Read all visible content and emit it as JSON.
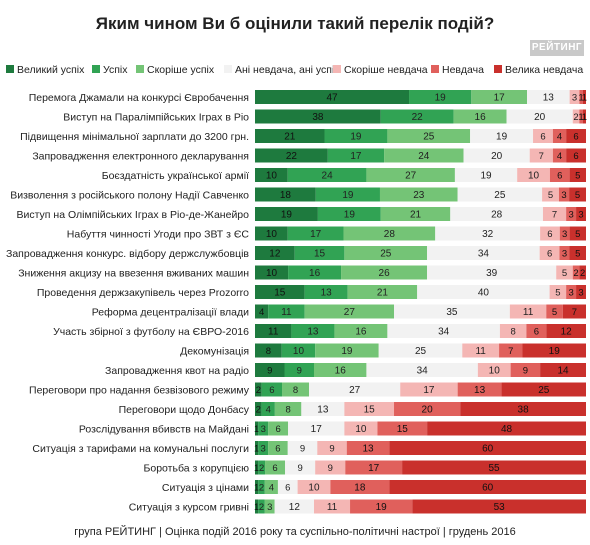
{
  "title": "Яким чином Ви б оцінили такий перелік подій?",
  "logo": "РЕЙТИНГ",
  "footer": "група РЕЙТИНГ  |  Оцінка подій 2016 року та суспільно-політичні настрої  |  грудень 2016",
  "colors": {
    "Великий успіх": "#1e7a3e",
    "Успіх": "#31a354",
    "Скоріше успіх": "#74c476",
    "Ані невдача, ані успіх": "#f2f2f2",
    "Скоріше невдача": "#f4b6b4",
    "Невдача": "#e0605c",
    "Велика невдача": "#c9302c"
  },
  "chart_data": {
    "type": "bar",
    "orientation": "horizontal",
    "stacked": true,
    "title": "Яким чином Ви б оцінили такий перелік подій?",
    "legend_position": "top",
    "categories": [
      "Перемога Джамали на конкурсі Євробачення",
      "Виступ на Паралімпійських Іграх в Ріо",
      "Підвищення мінімальної зарплати до 3200 грн.",
      "Запровадження електронного декларування",
      "Боєздатність української армії",
      "Визволення з російського полону Надії Савченко",
      "Виступ на Олімпійських Іграх в Ріо-де-Жанейро",
      "Набуття чинності Угоди про ЗВТ з ЄС",
      "Запровадження конкурс. відбору держслужбовців",
      "Зниження акцизу на ввезення вживаних машин",
      "Проведення держзакупівель через Prozorro",
      "Реформа децентралізації влади",
      "Участь збірної з футболу на ЄВРО-2016",
      "Декомунізація",
      "Запровадження квот на радіо",
      "Переговори про надання безвізового режиму",
      "Переговори щодо Донбасу",
      "Розслідування вбивств на Майдані",
      "Ситуація з тарифами на комунальні послуги",
      "Боротьба з корупцією",
      "Ситуація з цінами",
      "Ситуація з курсом гривні"
    ],
    "series": [
      {
        "name": "Великий успіх",
        "values": [
          47,
          38,
          21,
          22,
          10,
          18,
          19,
          10,
          12,
          10,
          15,
          4,
          11,
          8,
          9,
          2,
          2,
          1,
          1,
          1,
          1,
          1
        ]
      },
      {
        "name": "Успіх",
        "values": [
          19,
          22,
          19,
          17,
          24,
          19,
          19,
          17,
          15,
          16,
          13,
          11,
          13,
          10,
          9,
          6,
          4,
          3,
          3,
          2,
          2,
          2
        ]
      },
      {
        "name": "Скоріше успіх",
        "values": [
          17,
          16,
          25,
          24,
          27,
          23,
          21,
          28,
          25,
          26,
          21,
          27,
          16,
          19,
          16,
          8,
          8,
          6,
          6,
          6,
          4,
          3
        ]
      },
      {
        "name": "Ані невдача, ані успіх",
        "values": [
          13,
          20,
          19,
          20,
          19,
          25,
          28,
          32,
          34,
          39,
          40,
          35,
          34,
          25,
          34,
          27,
          13,
          17,
          9,
          9,
          6,
          12
        ]
      },
      {
        "name": "Скоріше невдача",
        "values": [
          3,
          2,
          6,
          7,
          10,
          5,
          7,
          6,
          6,
          5,
          5,
          11,
          8,
          11,
          10,
          17,
          15,
          10,
          9,
          9,
          10,
          11
        ]
      },
      {
        "name": "Невдача",
        "values": [
          1,
          1,
          4,
          4,
          6,
          3,
          3,
          3,
          3,
          2,
          3,
          5,
          6,
          7,
          9,
          13,
          20,
          15,
          13,
          17,
          18,
          19
        ]
      },
      {
        "name": "Велика невдача",
        "values": [
          1,
          1,
          6,
          6,
          5,
          5,
          3,
          5,
          5,
          2,
          3,
          7,
          12,
          19,
          14,
          25,
          38,
          48,
          60,
          55,
          60,
          53
        ]
      }
    ]
  }
}
